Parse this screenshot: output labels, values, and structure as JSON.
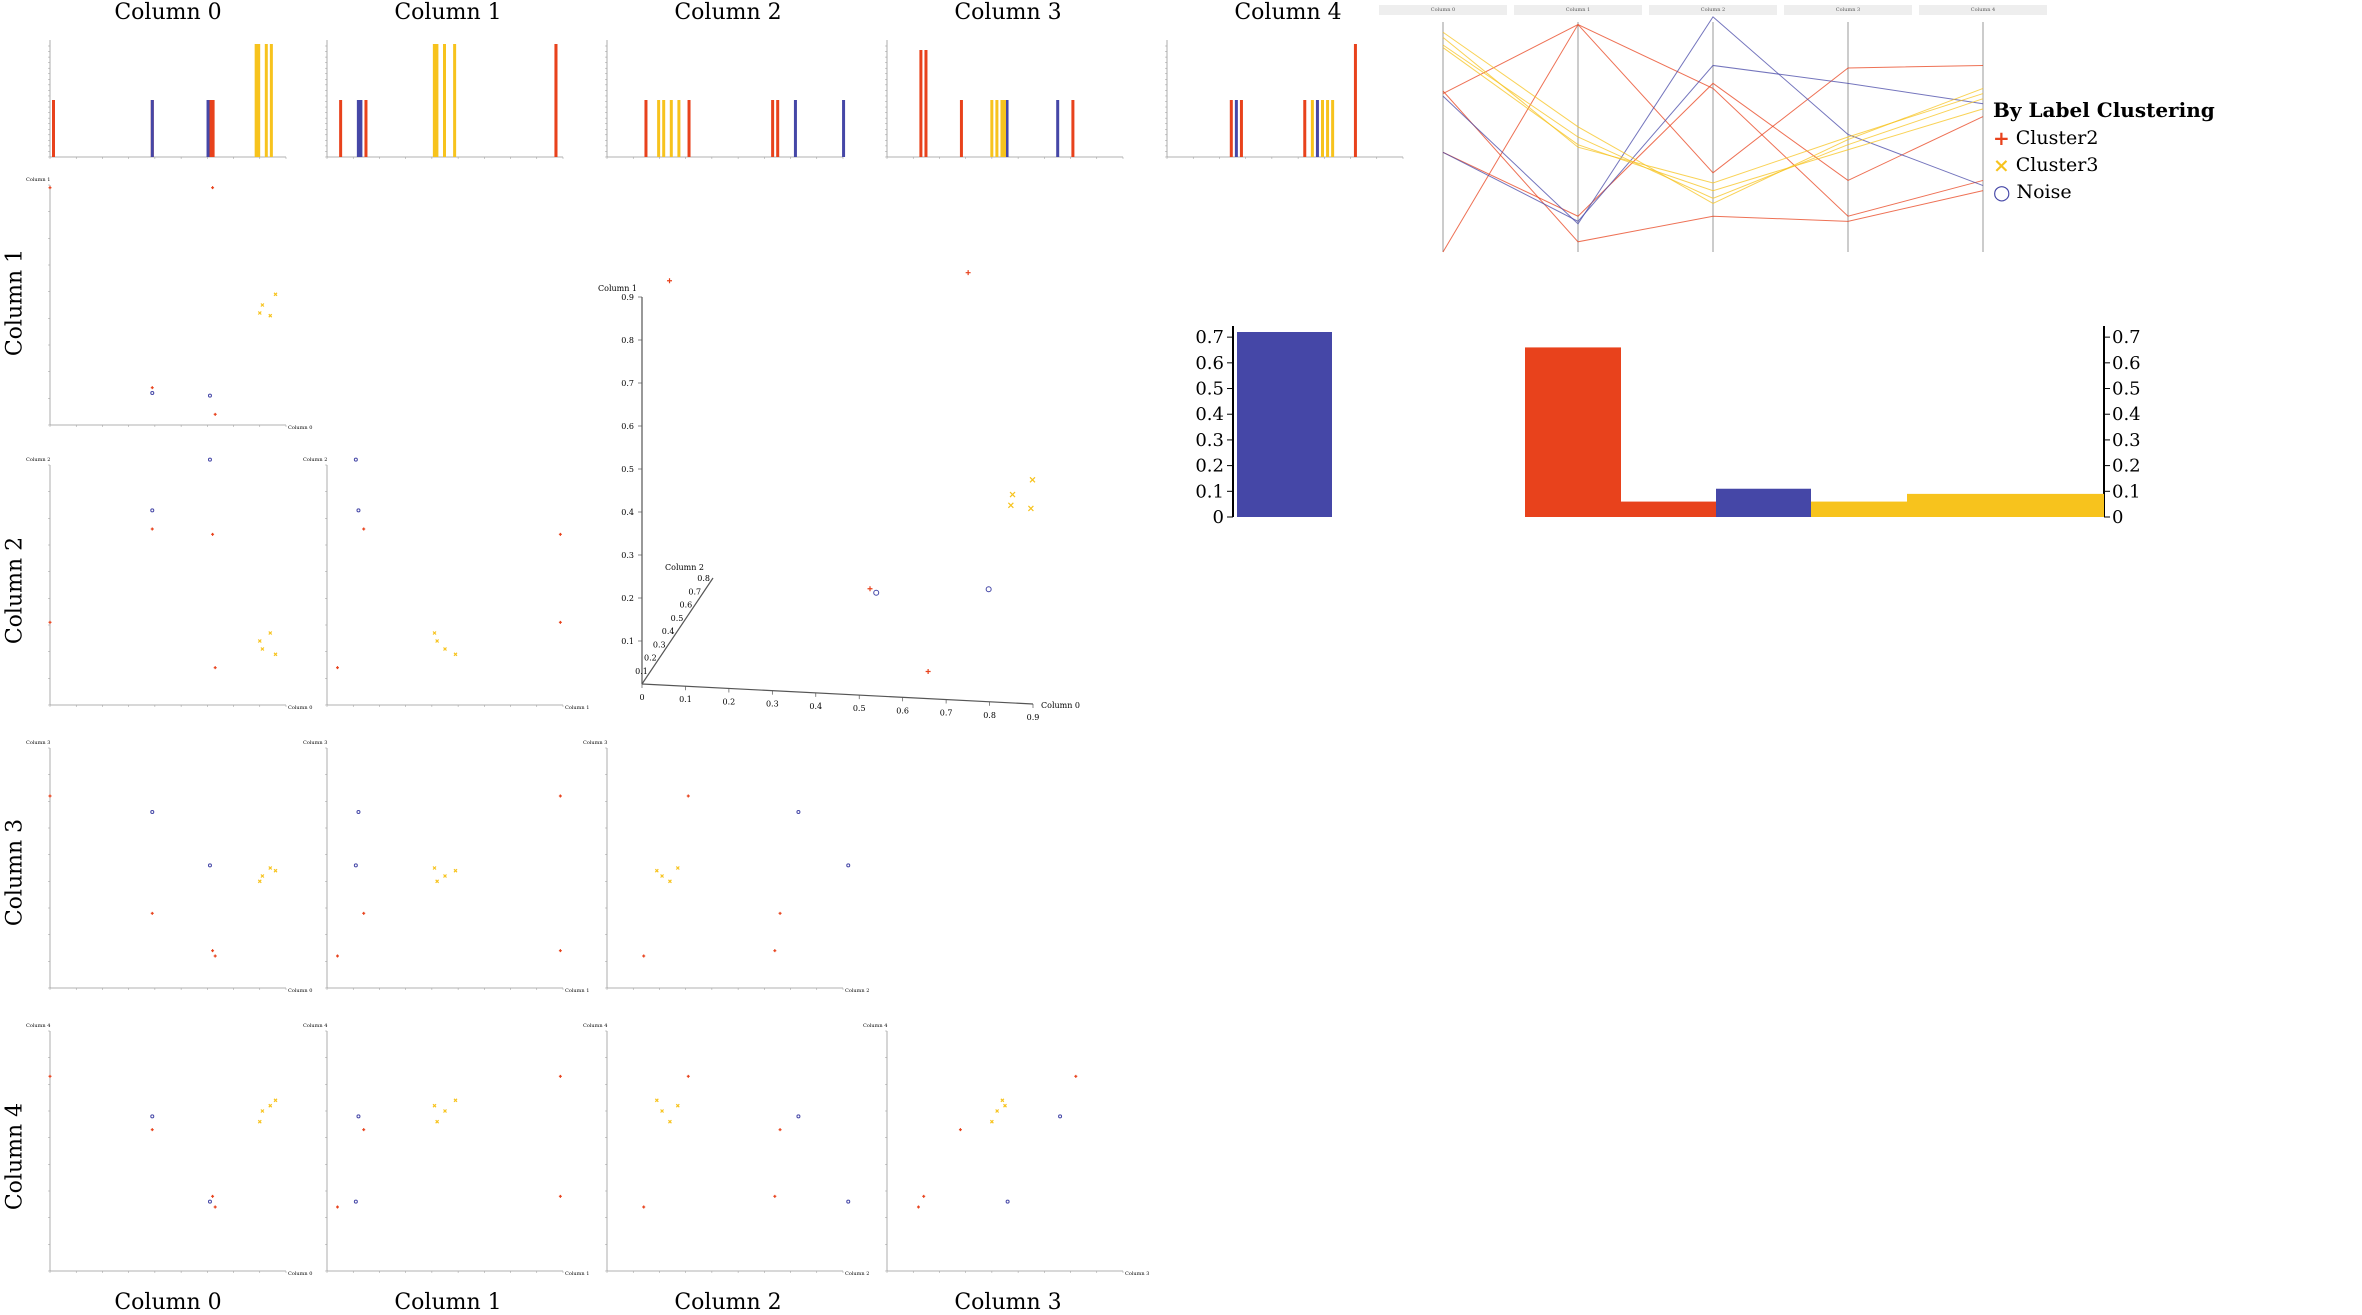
{
  "columns": [
    "Column 0",
    "Column 1",
    "Column 2",
    "Column 3",
    "Column 4"
  ],
  "colors": {
    "Cluster2": "#e8421c",
    "Cluster3": "#f7c31d",
    "Noise": "#4547a7",
    "axis": "#999999"
  },
  "legend": {
    "title": "By Label Clustering",
    "items": [
      {
        "label": "Cluster2",
        "symbol": "+",
        "color": "#e8421c"
      },
      {
        "label": "Cluster3",
        "symbol": "×",
        "color": "#f7c31d"
      },
      {
        "label": "Noise",
        "symbol": "○",
        "color": "#4547a7"
      }
    ]
  },
  "chart_data": {
    "type": "scatter",
    "points": [
      {
        "label": "Cluster2",
        "v": [
          0.0,
          0.89,
          0.31,
          0.72,
          0.73
        ]
      },
      {
        "label": "Cluster2",
        "v": [
          0.39,
          0.14,
          0.66,
          0.28,
          0.53
        ]
      },
      {
        "label": "Cluster2",
        "v": [
          0.63,
          0.04,
          0.14,
          0.12,
          0.24
        ]
      },
      {
        "label": "Cluster2",
        "v": [
          0.62,
          0.89,
          0.64,
          0.14,
          0.28
        ]
      },
      {
        "label": "Noise",
        "v": [
          0.61,
          0.11,
          0.92,
          0.46,
          0.26
        ]
      },
      {
        "label": "Noise",
        "v": [
          0.39,
          0.12,
          0.73,
          0.66,
          0.58
        ]
      },
      {
        "label": "Cluster3",
        "v": [
          0.8,
          0.42,
          0.24,
          0.4,
          0.56
        ]
      },
      {
        "label": "Cluster3",
        "v": [
          0.81,
          0.45,
          0.21,
          0.42,
          0.6
        ]
      },
      {
        "label": "Cluster3",
        "v": [
          0.84,
          0.41,
          0.27,
          0.45,
          0.62
        ]
      },
      {
        "label": "Cluster3",
        "v": [
          0.86,
          0.49,
          0.19,
          0.44,
          0.64
        ]
      }
    ],
    "pair_plot": {
      "row_axes": [
        "Column 1",
        "Column 2",
        "Column 3",
        "Column 4"
      ],
      "col_axes": [
        "Column 0",
        "Column 1",
        "Column 2",
        "Column 3"
      ],
      "range": [
        0,
        0.9
      ]
    },
    "scatter3d": {
      "x": "Column 0",
      "y": "Column 1",
      "z": "Column 2",
      "ticks": [
        0,
        0.1,
        0.2,
        0.3,
        0.4,
        0.5,
        0.6,
        0.7,
        0.8,
        0.9
      ]
    },
    "parallel": {
      "axes": [
        "Column 0",
        "Column 1",
        "Column 2",
        "Column 3",
        "Column 4"
      ]
    },
    "bar_cluster_sizes": {
      "categories": [
        "Noise",
        "Cluster2",
        "Cluster3"
      ],
      "left_value": 0.72,
      "segments": [
        {
          "label": "Cluster2",
          "value": 0.66
        },
        {
          "label": "Cluster2",
          "value": 0.06
        },
        {
          "label": "Noise",
          "value": 0.11
        },
        {
          "label": "Cluster3",
          "value": 0.06
        },
        {
          "label": "Cluster3",
          "value": 0.09
        }
      ],
      "ticks": [
        "0",
        "0.1",
        "0.2",
        "0.3",
        "0.4",
        "0.5",
        "0.6",
        "0.7"
      ]
    }
  }
}
